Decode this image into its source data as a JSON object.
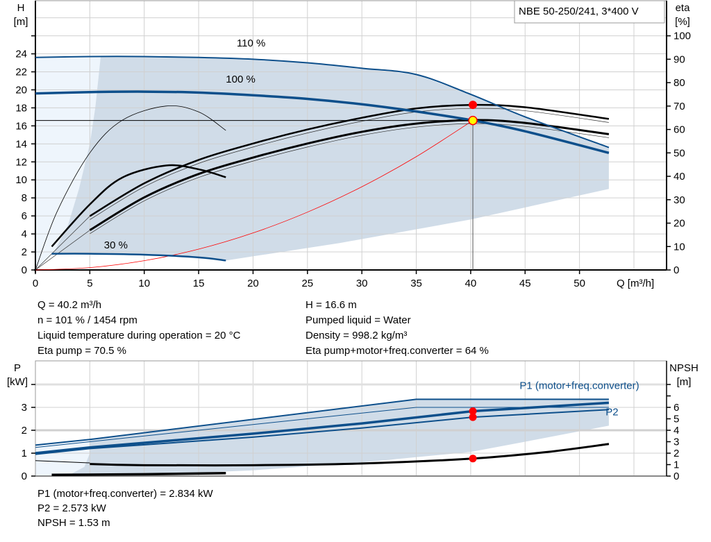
{
  "title_box": "NBE 50-250/241, 3*400 V",
  "colors": {
    "blue": "#0d4f8b",
    "band": "#d0dce8",
    "band_light": "#eef5fc",
    "red": "#ff0000",
    "op_fill": "#ffff00",
    "grid": "#d0d0d0"
  },
  "chart_data": [
    {
      "type": "line",
      "title": "",
      "xlabel": "Q [m³/h]",
      "ylabel_left": "H\n[m]",
      "ylabel_left_lines": [
        "H",
        "[m]"
      ],
      "ylabel_right_lines": [
        "eta",
        "[%]"
      ],
      "xlim": [
        0,
        58
      ],
      "ylim_left": [
        0,
        29.9
      ],
      "ylim_right": [
        0,
        115
      ],
      "grid": true,
      "x_ticks": [
        0,
        5,
        10,
        15,
        20,
        25,
        30,
        35,
        40,
        45,
        50
      ],
      "y_left_ticks": [
        0,
        2,
        4,
        6,
        8,
        10,
        12,
        14,
        16,
        18,
        20,
        22,
        24
      ],
      "y_right_ticks": [
        0,
        10,
        20,
        30,
        40,
        50,
        60,
        70,
        80,
        90,
        100
      ],
      "curve_labels": [
        {
          "text": "110 %",
          "q": 18.5,
          "h": 24.8
        },
        {
          "text": "100 %",
          "q": 17.5,
          "h": 20.8
        },
        {
          "text": "30 %",
          "q": 6.3,
          "h": 2.4
        }
      ],
      "head_curves": [
        {
          "speed": "110 %",
          "points": [
            [
              0,
              23.6
            ],
            [
              5,
              23.7
            ],
            [
              10,
              23.7
            ],
            [
              15,
              23.6
            ],
            [
              20,
              23.4
            ],
            [
              25,
              23.0
            ],
            [
              30,
              22.4
            ],
            [
              35,
              21.7
            ],
            [
              40,
              19.5
            ],
            [
              45,
              17.0
            ],
            [
              52.7,
              13.6
            ]
          ]
        },
        {
          "speed": "100 %",
          "points": [
            [
              0,
              19.6
            ],
            [
              5,
              19.75
            ],
            [
              10,
              19.8
            ],
            [
              15,
              19.7
            ],
            [
              20,
              19.4
            ],
            [
              25,
              19.0
            ],
            [
              30,
              18.4
            ],
            [
              35,
              17.6
            ],
            [
              40.2,
              16.6
            ],
            [
              45,
              15.4
            ],
            [
              52.7,
              13.0
            ]
          ]
        },
        {
          "speed": "30 %",
          "points": [
            [
              1.5,
              1.8
            ],
            [
              5,
              1.8
            ],
            [
              10,
              1.7
            ],
            [
              15,
              1.4
            ],
            [
              17.5,
              1.05
            ]
          ]
        }
      ],
      "system_curve": [
        [
          0,
          0
        ],
        [
          5,
          0.26
        ],
        [
          10,
          1.03
        ],
        [
          15,
          2.31
        ],
        [
          20,
          4.11
        ],
        [
          25,
          6.42
        ],
        [
          30,
          9.24
        ],
        [
          35,
          12.58
        ],
        [
          40.2,
          16.6
        ]
      ],
      "eta_curves": [
        {
          "name": "Eta pump",
          "points": [
            [
              5,
              23
            ],
            [
              10,
              37
            ],
            [
              15,
              47
            ],
            [
              20,
              54
            ],
            [
              25,
              60
            ],
            [
              30,
              65
            ],
            [
              35,
              69
            ],
            [
              40.2,
              70.5
            ],
            [
              45,
              69.5
            ],
            [
              52.7,
              64.5
            ]
          ]
        },
        {
          "name": "Eta pump+motor+freq.converter",
          "points": [
            [
              5,
              17
            ],
            [
              10,
              31
            ],
            [
              15,
              41
            ],
            [
              20,
              48
            ],
            [
              25,
              54
            ],
            [
              30,
              59
            ],
            [
              35,
              62.5
            ],
            [
              40.2,
              64
            ],
            [
              45,
              62.8
            ],
            [
              52.7,
              58
            ]
          ]
        },
        {
          "name": "Eta pump 30 %",
          "points": [
            [
              0,
              0
            ],
            [
              2,
              25
            ],
            [
              5,
              50
            ],
            [
              8,
              64
            ],
            [
              12,
              70
            ],
            [
              15,
              67.5
            ],
            [
              17.5,
              59.6
            ]
          ]
        },
        {
          "name": "Eta total 30 %",
          "points": [
            [
              1.5,
              10
            ],
            [
              5,
              28
            ],
            [
              8,
              39.5
            ],
            [
              12,
              44.6
            ],
            [
              15,
              43
            ],
            [
              17.5,
              39.6
            ]
          ]
        }
      ],
      "band_dark": [
        [
          1.5,
          1.5
        ],
        [
          3,
          5
        ],
        [
          4,
          9
        ],
        [
          5,
          14
        ],
        [
          5.5,
          18
        ],
        [
          6,
          23.7
        ],
        [
          15,
          23.6
        ],
        [
          25,
          23.0
        ],
        [
          35,
          21.7
        ],
        [
          40,
          19.5
        ],
        [
          45,
          17.0
        ],
        [
          52.7,
          13.6
        ],
        [
          52.7,
          9
        ],
        [
          40,
          5.6
        ],
        [
          28,
          3.0
        ],
        [
          17.5,
          1.05
        ],
        [
          10,
          1.7
        ],
        [
          5,
          1.8
        ],
        [
          1.5,
          1.8
        ]
      ],
      "band_light": [
        [
          0,
          0
        ],
        [
          0,
          23.6
        ],
        [
          6,
          23.7
        ],
        [
          5.5,
          18
        ],
        [
          5,
          14
        ],
        [
          4,
          9
        ],
        [
          3,
          5
        ],
        [
          1.5,
          1.5
        ]
      ],
      "operating_point": {
        "q": 40.2,
        "h": 16.6,
        "eta_pump": 70.5,
        "eta_total": 64
      }
    },
    {
      "type": "line",
      "title": "",
      "ylabel_left_lines": [
        "P",
        "[kW]"
      ],
      "ylabel_right_lines": [
        "NPSH",
        "[m]"
      ],
      "xlim": [
        0,
        58
      ],
      "ylim_left": [
        0,
        5.03
      ],
      "ylim_right": [
        0,
        10.06
      ],
      "grid": true,
      "y_left_ticks": [
        0,
        1,
        2,
        3
      ],
      "y_right_ticks": [
        0,
        1,
        2,
        3,
        4,
        5,
        6
      ],
      "series_labels": [
        {
          "text": "P1 (motor+freq.converter)",
          "q": 44.5,
          "p": 3.8
        },
        {
          "text": "P2",
          "q": 52.4,
          "p": 2.65
        }
      ],
      "power_curves": [
        {
          "name": "P1 110 %",
          "weight": "mid",
          "points": [
            [
              0,
              1.35
            ],
            [
              5,
              1.6
            ],
            [
              35,
              3.35
            ],
            [
              52.7,
              3.35
            ]
          ]
        },
        {
          "name": "P1 110 % thin",
          "weight": "thin",
          "points": [
            [
              0,
              1.25
            ],
            [
              5,
              1.5
            ],
            [
              35,
              3.0
            ],
            [
              52.7,
              3.0
            ]
          ]
        },
        {
          "name": "P1 (motor+freq.converter)",
          "weight": "thick",
          "points": [
            [
              0,
              1.0
            ],
            [
              5,
              1.25
            ],
            [
              20,
              1.85
            ],
            [
              30,
              2.3
            ],
            [
              40.2,
              2.834
            ],
            [
              52.7,
              3.2
            ]
          ]
        },
        {
          "name": "P2",
          "weight": "mid",
          "points": [
            [
              0,
              0.95
            ],
            [
              5,
              1.2
            ],
            [
              20,
              1.7
            ],
            [
              30,
              2.1
            ],
            [
              40.2,
              2.573
            ],
            [
              52.7,
              2.9
            ]
          ]
        },
        {
          "name": "P 30 %",
          "weight": "thick",
          "points": [
            [
              1.5,
              0.05
            ],
            [
              10,
              0.08
            ],
            [
              17.5,
              0.13
            ]
          ]
        }
      ],
      "npsh_curve": [
        [
          5,
          1.05
        ],
        [
          10,
          0.95
        ],
        [
          20,
          0.95
        ],
        [
          30,
          1.1
        ],
        [
          40.2,
          1.53
        ],
        [
          47,
          2.1
        ],
        [
          52.7,
          2.8
        ]
      ],
      "npsh_thin": [
        [
          0,
          1.35
        ],
        [
          5,
          1.15
        ]
      ],
      "band_dark": [
        [
          5,
          1.6
        ],
        [
          35,
          3.35
        ],
        [
          52.7,
          3.35
        ],
        [
          52.7,
          2.2
        ],
        [
          45,
          1.5
        ],
        [
          40,
          1.05
        ],
        [
          30,
          0.6
        ],
        [
          20,
          0.25
        ],
        [
          10,
          0.05
        ],
        [
          3,
          0.02
        ],
        [
          4.5,
          0.4
        ],
        [
          5,
          1.0
        ]
      ],
      "band_light": [
        [
          0,
          0
        ],
        [
          0,
          1.35
        ],
        [
          5,
          1.6
        ],
        [
          5,
          1.0
        ],
        [
          4.5,
          0.4
        ],
        [
          3,
          0.02
        ]
      ],
      "operating_point": {
        "q": 40.2,
        "p1": 2.834,
        "p2": 2.573,
        "npsh": 1.53
      }
    }
  ],
  "results_top": {
    "left": [
      "Q = 40.2 m³/h",
      "n = 101 % / 1454 rpm",
      "Liquid temperature during operation = 20 °C",
      "Eta pump = 70.5 %"
    ],
    "right": [
      "H = 16.6 m",
      "Pumped liquid = Water",
      "Density = 998.2 kg/m³",
      "Eta pump+motor+freq.converter = 64 %"
    ]
  },
  "results_bottom": [
    "P1 (motor+freq.converter) = 2.834 kW",
    "P2 = 2.573 kW",
    "NPSH = 1.53 m"
  ]
}
